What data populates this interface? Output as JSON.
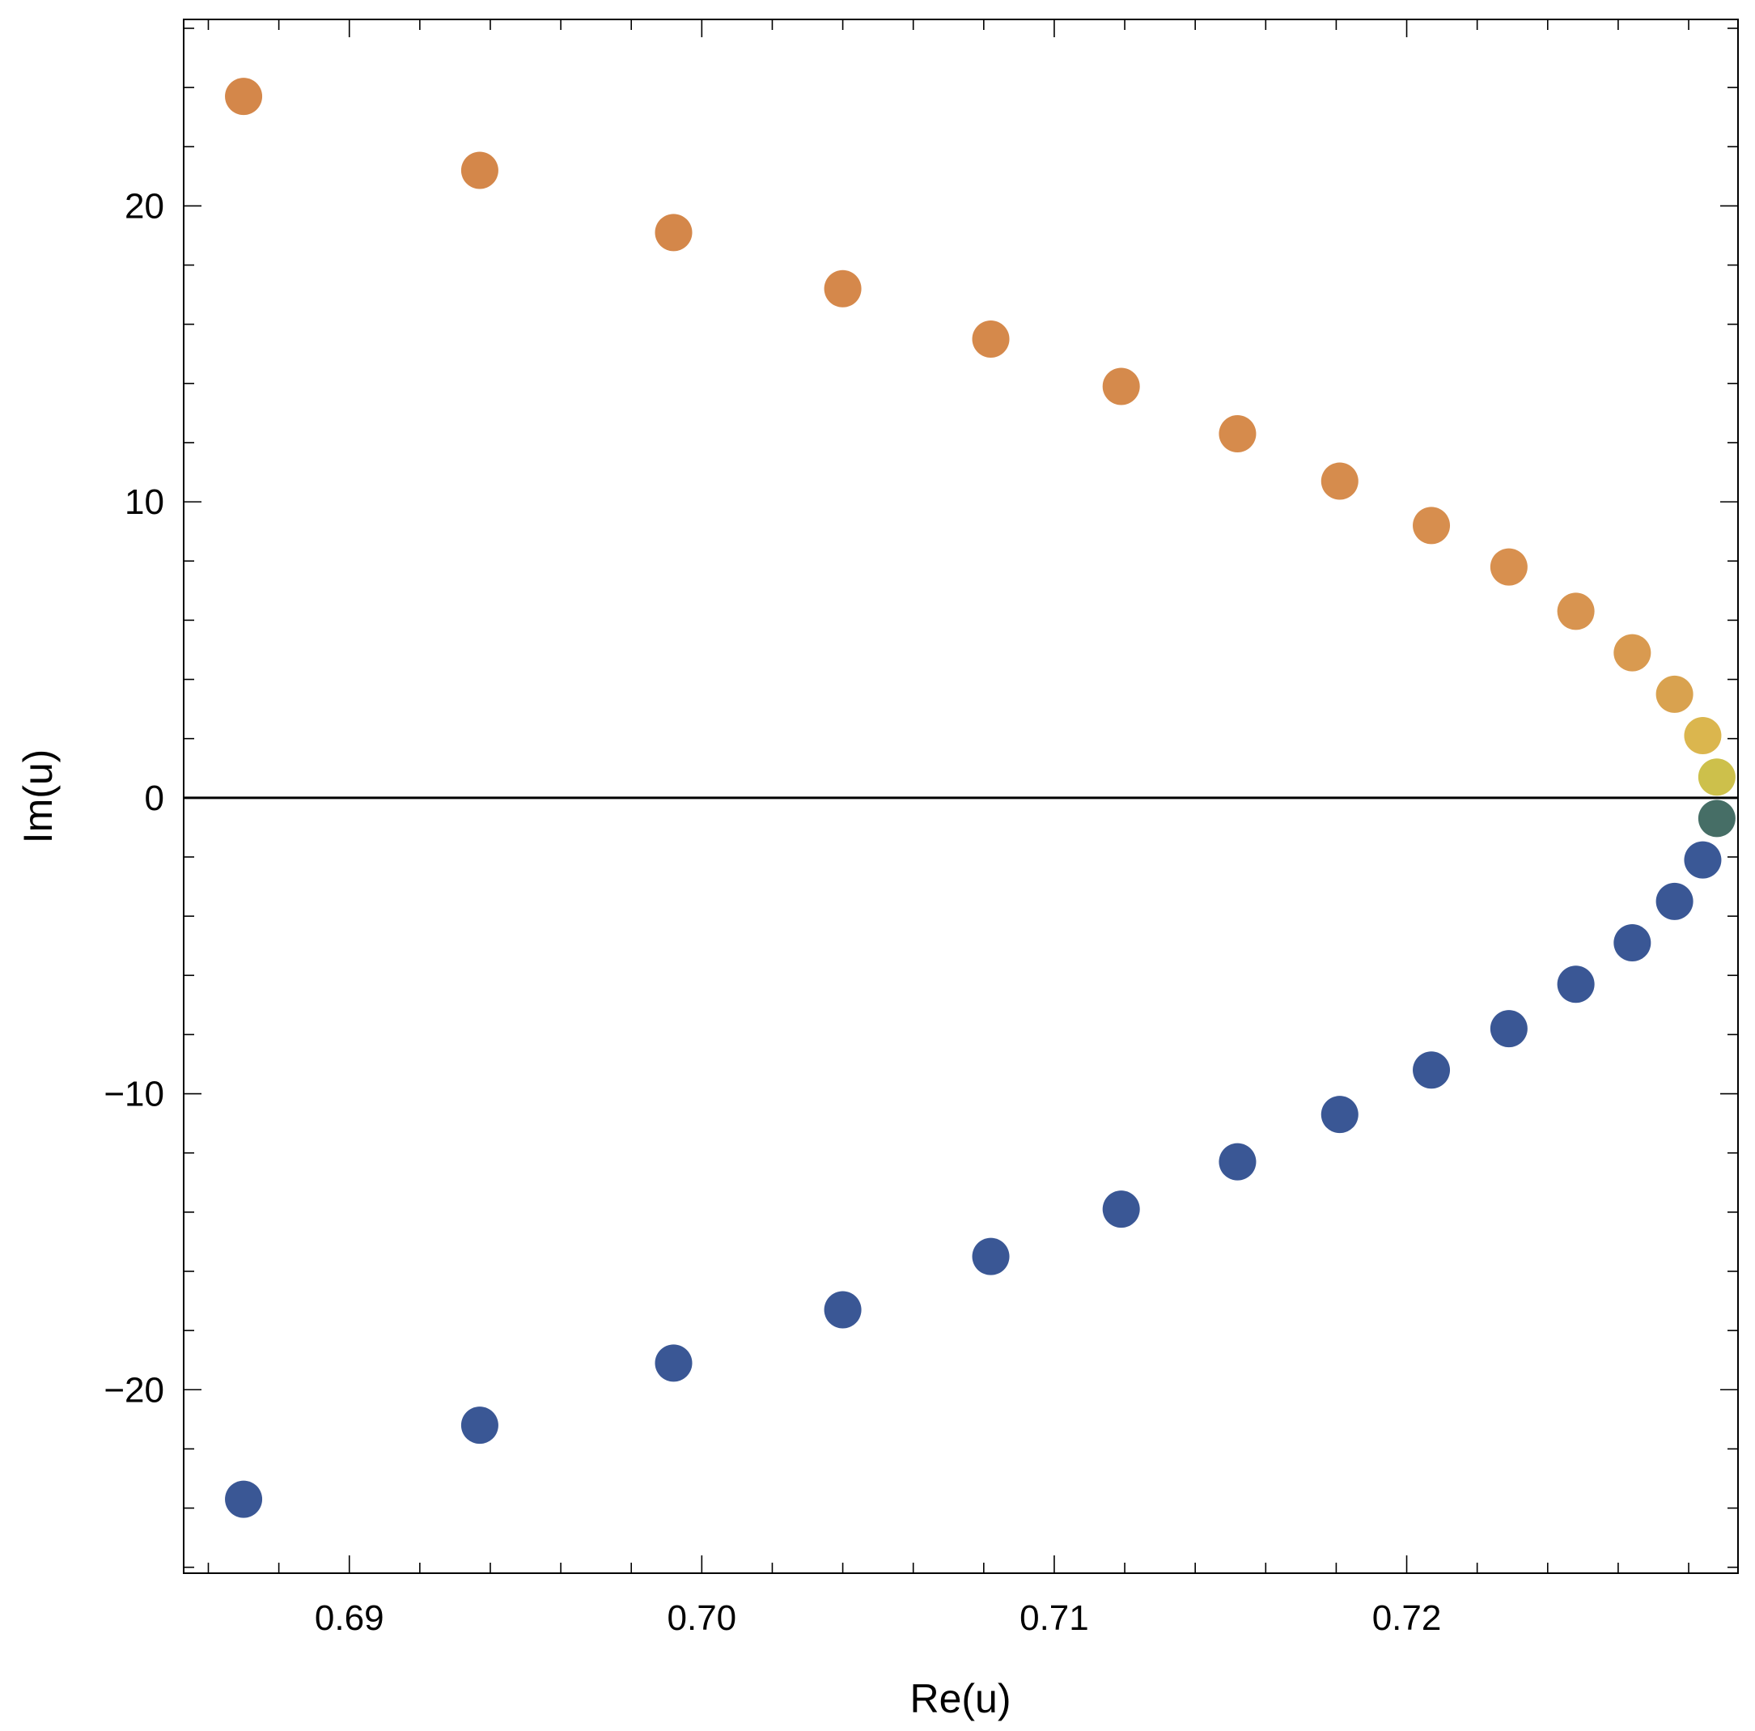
{
  "chart_data": {
    "type": "scatter",
    "xlabel": "Re(u)",
    "ylabel": "Im(u)",
    "xlim": [
      0.6853,
      0.7294
    ],
    "ylim": [
      -26.2,
      26.3
    ],
    "xticks": [
      0.69,
      0.7,
      0.71,
      0.72
    ],
    "xtick_labels": [
      "0.69",
      "0.70",
      "0.71",
      "0.72"
    ],
    "yticks": [
      -20,
      -10,
      0,
      10,
      20
    ],
    "ytick_labels": [
      "−20",
      "−10",
      "0",
      "10",
      "20"
    ],
    "x_minor_step": 0.002,
    "y_minor_step": 2,
    "zero_line": true,
    "grid": false,
    "legend": "none",
    "points": [
      {
        "x": 0.687,
        "y": 23.7,
        "color": "#d4874a"
      },
      {
        "x": 0.6937,
        "y": 21.2,
        "color": "#d4874a"
      },
      {
        "x": 0.6992,
        "y": 19.1,
        "color": "#d4874a"
      },
      {
        "x": 0.704,
        "y": 17.2,
        "color": "#d5884b"
      },
      {
        "x": 0.7082,
        "y": 15.5,
        "color": "#d5894b"
      },
      {
        "x": 0.7119,
        "y": 13.9,
        "color": "#d58a4c"
      },
      {
        "x": 0.7152,
        "y": 12.3,
        "color": "#d68b4c"
      },
      {
        "x": 0.7181,
        "y": 10.7,
        "color": "#d68c4d"
      },
      {
        "x": 0.7207,
        "y": 9.2,
        "color": "#d78e4e"
      },
      {
        "x": 0.7229,
        "y": 7.8,
        "color": "#d8904f"
      },
      {
        "x": 0.7248,
        "y": 6.3,
        "color": "#d89450"
      },
      {
        "x": 0.7264,
        "y": 4.9,
        "color": "#d99a50"
      },
      {
        "x": 0.7276,
        "y": 3.5,
        "color": "#d9a24f"
      },
      {
        "x": 0.7284,
        "y": 2.1,
        "color": "#dbb64e"
      },
      {
        "x": 0.7288,
        "y": 0.7,
        "color": "#cdc04b"
      },
      {
        "x": 0.7288,
        "y": -0.7,
        "color": "#466e66"
      },
      {
        "x": 0.7284,
        "y": -2.1,
        "color": "#3a5896"
      },
      {
        "x": 0.7276,
        "y": -3.5,
        "color": "#3a5795"
      },
      {
        "x": 0.7264,
        "y": -4.9,
        "color": "#3a5795"
      },
      {
        "x": 0.7248,
        "y": -6.3,
        "color": "#3a5795"
      },
      {
        "x": 0.7229,
        "y": -7.8,
        "color": "#3a5795"
      },
      {
        "x": 0.7207,
        "y": -9.2,
        "color": "#3a5795"
      },
      {
        "x": 0.7181,
        "y": -10.7,
        "color": "#3a5795"
      },
      {
        "x": 0.7152,
        "y": -12.3,
        "color": "#3a5795"
      },
      {
        "x": 0.7119,
        "y": -13.9,
        "color": "#3a5795"
      },
      {
        "x": 0.7082,
        "y": -15.5,
        "color": "#3a5795"
      },
      {
        "x": 0.704,
        "y": -17.3,
        "color": "#3a5795"
      },
      {
        "x": 0.6992,
        "y": -19.1,
        "color": "#3a5795"
      },
      {
        "x": 0.6937,
        "y": -21.2,
        "color": "#3a5795"
      },
      {
        "x": 0.687,
        "y": -23.7,
        "color": "#3a5795"
      }
    ]
  }
}
